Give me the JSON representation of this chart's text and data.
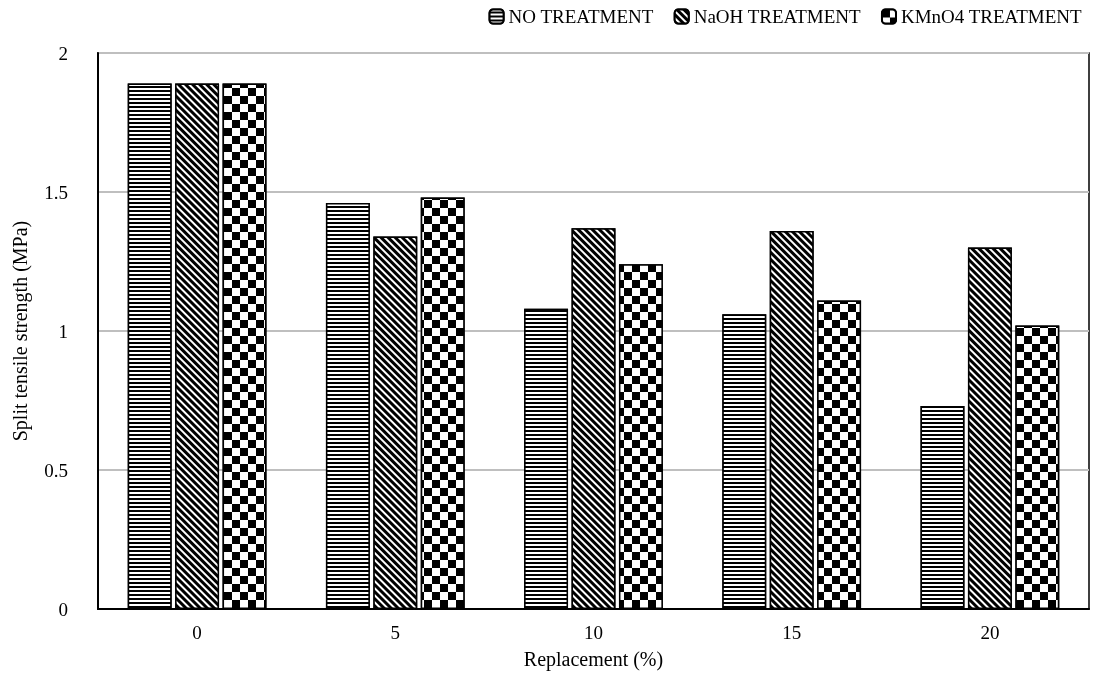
{
  "chart_data": {
    "type": "bar",
    "xlabel": "Replacement (%)",
    "ylabel": "Split tensile strength (MPa)",
    "categories": [
      "0",
      "5",
      "10",
      "15",
      "20"
    ],
    "series": [
      {
        "name": "NO TREATMENT",
        "color": "#000000",
        "values": [
          1.89,
          1.46,
          1.08,
          1.06,
          0.73
        ]
      },
      {
        "name": "NaOH TREATMENT",
        "color": "#000000",
        "values": [
          1.89,
          1.34,
          1.37,
          1.36,
          1.3
        ]
      },
      {
        "name": "KMnO4 TREATMENT",
        "color": "#000000",
        "values": [
          1.89,
          1.48,
          1.24,
          1.11,
          1.02
        ]
      }
    ],
    "ylim": [
      0,
      2
    ],
    "yticks": [
      0,
      0.5,
      1,
      1.5,
      2
    ],
    "grid": "y",
    "legend": "top right"
  }
}
